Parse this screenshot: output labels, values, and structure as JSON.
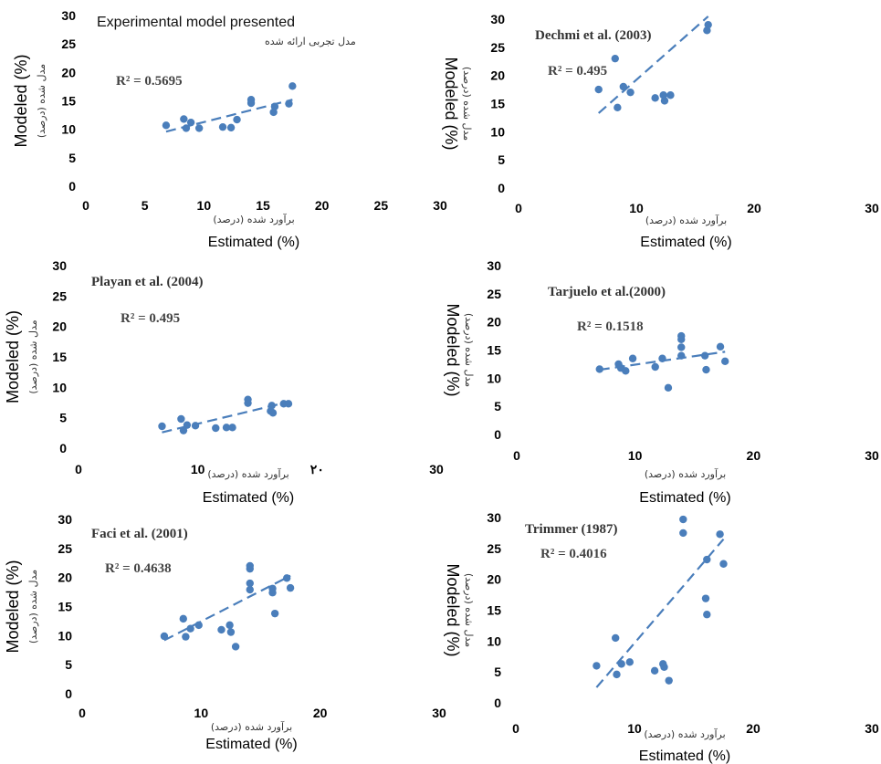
{
  "figure": {
    "xlabel_en": "Estimated (%)",
    "xlabel_fa": "برآورد شده (درصد)",
    "ylabel_en": "Modeled (%)",
    "ylabel_fa": "مدل شده (درصد)"
  },
  "chart_data": [
    {
      "type": "scatter",
      "title": "Experimental model presented",
      "subtitle": "مدل تجربی ارائه شده",
      "annotation": "R² = 0.5695",
      "xlim": [
        0,
        30
      ],
      "ylim": [
        0,
        30
      ],
      "xticks": [
        "0",
        "5",
        "10",
        "15",
        "20",
        "25",
        "30"
      ],
      "yticks": [
        "0",
        "5",
        "10",
        "15",
        "20",
        "25",
        "30"
      ],
      "points": [
        [
          6.8,
          10.7
        ],
        [
          8.3,
          11.8
        ],
        [
          8.5,
          10.2
        ],
        [
          8.9,
          11.2
        ],
        [
          9.6,
          10.2
        ],
        [
          11.6,
          10.4
        ],
        [
          12.3,
          10.3
        ],
        [
          12.8,
          11.7
        ],
        [
          14,
          14.6
        ],
        [
          14,
          15.2
        ],
        [
          15.9,
          13
        ],
        [
          16,
          14
        ],
        [
          17.2,
          14.5
        ],
        [
          17.5,
          17.6
        ]
      ],
      "trendline": [
        [
          6.8,
          9.6
        ],
        [
          17.5,
          15.2
        ]
      ],
      "color": "#4a7ebb"
    },
    {
      "type": "scatter",
      "title": "Dechmi et al. (2003)",
      "annotation": "R² = 0.495",
      "xlim": [
        0,
        30
      ],
      "ylim": [
        0,
        30
      ],
      "xticks": [
        "0",
        "10",
        "20",
        "30"
      ],
      "yticks": [
        "0",
        "5",
        "10",
        "15",
        "20",
        "25",
        "30"
      ],
      "points": [
        [
          6.8,
          17.5
        ],
        [
          8.2,
          23
        ],
        [
          8.4,
          14.3
        ],
        [
          8.9,
          18
        ],
        [
          9.5,
          17
        ],
        [
          11.6,
          16
        ],
        [
          12.3,
          16.5
        ],
        [
          12.4,
          15.5
        ],
        [
          12.9,
          16.5
        ],
        [
          16,
          28
        ],
        [
          16.1,
          29
        ]
      ],
      "trendline": [
        [
          6.8,
          13.3
        ],
        [
          16.1,
          30.5
        ]
      ],
      "color": "#4a7ebb"
    },
    {
      "type": "scatter",
      "title": "Playan et al. (2004)",
      "annotation": "R² = 0.495",
      "xlim": [
        0,
        30
      ],
      "ylim": [
        0,
        30
      ],
      "xticks": [
        "0",
        "10",
        "۲۰",
        "30"
      ],
      "yticks": [
        "0",
        "5",
        "10",
        "15",
        "20",
        "25",
        "30"
      ],
      "points": [
        [
          7,
          3.6
        ],
        [
          8.6,
          4.8
        ],
        [
          8.8,
          2.9
        ],
        [
          9.1,
          3.8
        ],
        [
          9.8,
          3.7
        ],
        [
          11.5,
          3.3
        ],
        [
          12.4,
          3.4
        ],
        [
          12.9,
          3.4
        ],
        [
          14.2,
          7.4
        ],
        [
          14.2,
          8
        ],
        [
          16.1,
          6.1
        ],
        [
          16.2,
          7
        ],
        [
          16.3,
          5.8
        ],
        [
          17.2,
          7.3
        ],
        [
          17.6,
          7.3
        ]
      ],
      "trendline": [
        [
          7,
          2.6
        ],
        [
          17.6,
          7.6
        ]
      ],
      "color": "#4a7ebb"
    },
    {
      "type": "scatter",
      "title": "Tarjuelo et al.(2000)",
      "annotation": "R² = 0.1518",
      "xlim": [
        0,
        30
      ],
      "ylim": [
        0,
        30
      ],
      "xticks": [
        "0",
        "10",
        "20",
        "30"
      ],
      "yticks": [
        "0",
        "5",
        "10",
        "15",
        "20",
        "25",
        "30"
      ],
      "points": [
        [
          7,
          11.6
        ],
        [
          8.6,
          12.5
        ],
        [
          8.8,
          11.8
        ],
        [
          9.2,
          11.3
        ],
        [
          9.8,
          13.5
        ],
        [
          11.7,
          12
        ],
        [
          12.3,
          13.5
        ],
        [
          12.8,
          8.3
        ],
        [
          13.9,
          14
        ],
        [
          13.9,
          15.5
        ],
        [
          13.9,
          16.9
        ],
        [
          13.9,
          17.5
        ],
        [
          15.9,
          14
        ],
        [
          16,
          11.5
        ],
        [
          17.2,
          15.6
        ],
        [
          17.6,
          13
        ]
      ],
      "trendline": [
        [
          7,
          11.5
        ],
        [
          17.6,
          14.7
        ]
      ],
      "color": "#4a7ebb"
    },
    {
      "type": "scatter",
      "title": "Faci et al. (2001)",
      "annotation": "R² = 0.4638",
      "xlim": [
        0,
        30
      ],
      "ylim": [
        0,
        30
      ],
      "xticks": [
        "0",
        "10",
        "20",
        "30"
      ],
      "yticks": [
        "0",
        "5",
        "10",
        "15",
        "20",
        "25",
        "30"
      ],
      "points": [
        [
          6.9,
          9.9
        ],
        [
          8.5,
          12.9
        ],
        [
          8.7,
          9.8
        ],
        [
          9.1,
          11.2
        ],
        [
          9.8,
          11.8
        ],
        [
          11.7,
          11
        ],
        [
          12.4,
          11.8
        ],
        [
          12.5,
          10.6
        ],
        [
          12.9,
          8.1
        ],
        [
          14.1,
          17.9
        ],
        [
          14.1,
          19
        ],
        [
          14.1,
          21.5
        ],
        [
          14.1,
          22
        ],
        [
          16,
          17.4
        ],
        [
          16,
          18.1
        ],
        [
          16.2,
          13.8
        ],
        [
          17.2,
          19.9
        ],
        [
          17.5,
          18.2
        ]
      ],
      "trendline": [
        [
          6.9,
          9.2
        ],
        [
          17.5,
          20.3
        ]
      ],
      "color": "#4a7ebb"
    },
    {
      "type": "scatter",
      "title": "Trimmer  (1987)",
      "annotation": "R² = 0.4016",
      "xlim": [
        0,
        30
      ],
      "ylim": [
        0,
        30
      ],
      "xticks": [
        "0",
        "10",
        "20",
        "30"
      ],
      "yticks": [
        "0",
        "5",
        "10",
        "15",
        "20",
        "25",
        "30"
      ],
      "points": [
        [
          6.8,
          6
        ],
        [
          8.4,
          10.5
        ],
        [
          8.5,
          4.6
        ],
        [
          8.9,
          6.3
        ],
        [
          9.6,
          6.6
        ],
        [
          11.7,
          5.2
        ],
        [
          12.4,
          6.3
        ],
        [
          12.5,
          5.8
        ],
        [
          12.9,
          3.6
        ],
        [
          14.1,
          27.5
        ],
        [
          14.1,
          29.7
        ],
        [
          16,
          16.9
        ],
        [
          16.1,
          14.3
        ],
        [
          16.1,
          23.2
        ],
        [
          17.2,
          27.3
        ],
        [
          17.5,
          22.5
        ]
      ],
      "trendline": [
        [
          6.8,
          2.5
        ],
        [
          17.5,
          26.5
        ]
      ],
      "color": "#4a7ebb"
    }
  ]
}
